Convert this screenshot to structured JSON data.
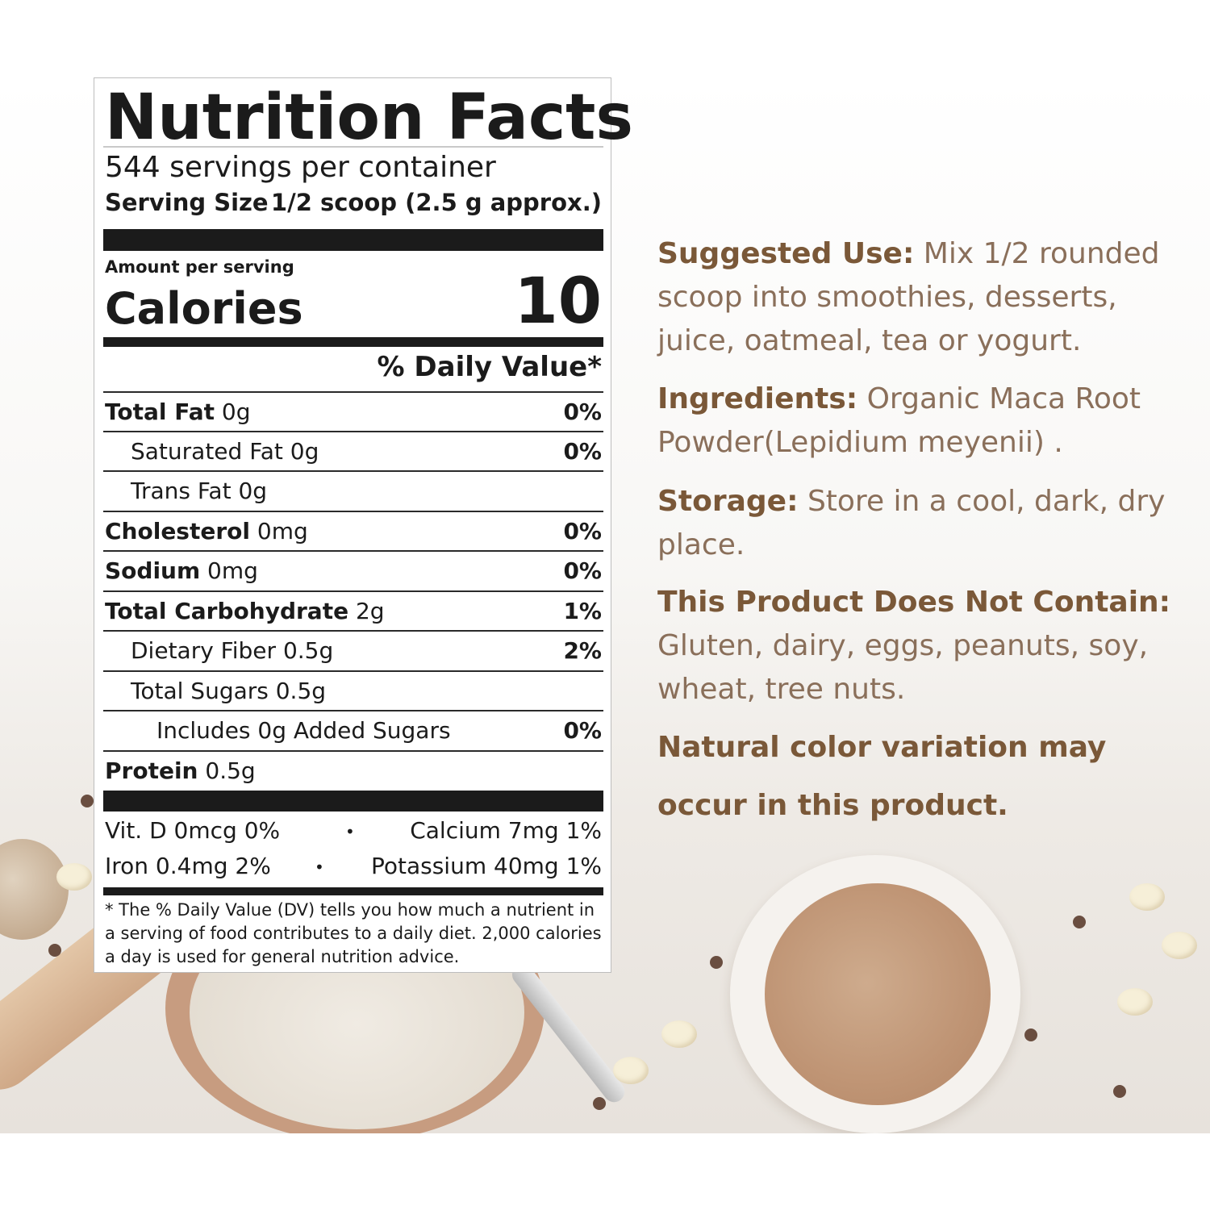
{
  "label": {
    "title": "Nutrition Facts",
    "servings": "544 servings per container",
    "serving_size_label": "Serving Size",
    "serving_size_value": "1/2 scoop (2.5 g approx.)",
    "amount_per_serving": "Amount per serving",
    "calories_label": "Calories",
    "calories_value": "10",
    "daily_value_header": "% Daily Value*",
    "rows": [
      {
        "name": "Total Fat",
        "amount": " 0g",
        "pct": "0%"
      },
      {
        "name": "Saturated Fat 0g",
        "amount": "",
        "pct": "0%"
      },
      {
        "name": "Trans Fat 0g",
        "amount": "",
        "pct": ""
      },
      {
        "name": "Cholesterol",
        "amount": " 0mg",
        "pct": "0%"
      },
      {
        "name": "Sodium",
        "amount": " 0mg",
        "pct": "0%"
      },
      {
        "name": "Total Carbohydrate",
        "amount": " 2g",
        "pct": "1%"
      },
      {
        "name": "Dietary Fiber 0.5g",
        "amount": "",
        "pct": "2%"
      },
      {
        "name": "Total Sugars 0.5g",
        "amount": "",
        "pct": ""
      },
      {
        "name": "Includes 0g Added Sugars",
        "amount": "",
        "pct": "0%"
      },
      {
        "name": "Protein",
        "amount": " 0.5g",
        "pct": ""
      }
    ],
    "vitamins": {
      "vit_d": "Vit. D 0mcg 0%",
      "calcium": "Calcium 7mg 1%",
      "iron": "Iron 0.4mg 2%",
      "potassium": "Potassium 40mg 1%",
      "separator": "•"
    },
    "footnote": "* The % Daily Value (DV) tells you how much a nutrient in a serving of food contributes to a daily diet. 2,000 calories a day is used for general nutrition advice."
  },
  "info": {
    "suggested_use_label": "Suggested Use:",
    "suggested_use_text": " Mix 1/2 rounded scoop into smoothies, desserts, juice, oatmeal,  tea or yogurt.",
    "ingredients_label": "Ingredients:",
    "ingredients_text": " Organic Maca Root Powder(Lepidium meyenii) .",
    "storage_label": "Storage:",
    "storage_text": " Store in a cool, dark, dry place.",
    "does_not_contain_label": "This Product Does Not Contain:",
    "does_not_contain_text": "Gluten, dairy, eggs, peanuts, soy, wheat, tree nuts.",
    "color_note": "Natural color variation may occur in this product."
  },
  "colors": {
    "heading_brown": "#7a5838",
    "body_brown": "#8a6f5a",
    "label_black": "#1b1b1b"
  }
}
